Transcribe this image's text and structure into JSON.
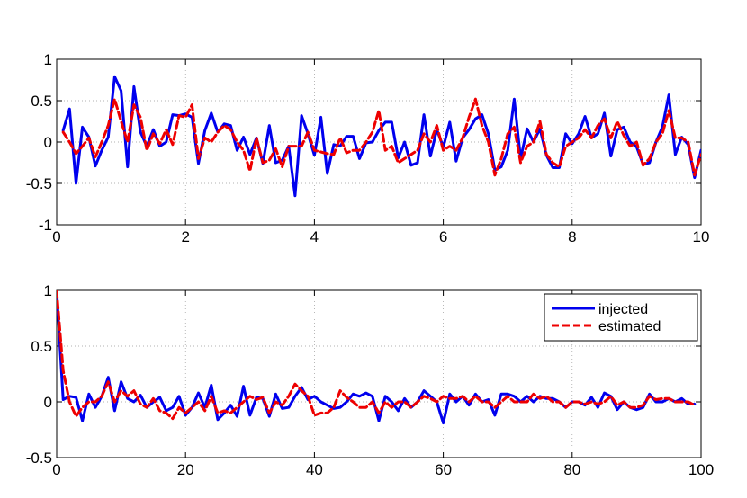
{
  "chart_data": [
    {
      "type": "line",
      "title": "",
      "xlabel": "",
      "ylabel": "",
      "xlim": [
        0,
        10
      ],
      "ylim": [
        -1,
        1
      ],
      "xticks": [
        0,
        2,
        4,
        6,
        8,
        10
      ],
      "yticks": [
        -1,
        -0.5,
        0,
        0.5,
        1
      ],
      "xtick_labels": [
        "0",
        "2",
        "4",
        "6",
        "8",
        "10"
      ],
      "ytick_labels": [
        "-1",
        "-0.5",
        "0",
        "0.5",
        "1"
      ],
      "grid": true,
      "legend": null,
      "x": [
        0.1,
        0.2,
        0.3,
        0.4,
        0.5,
        0.6,
        0.7,
        0.8,
        0.9,
        1.0,
        1.1,
        1.2,
        1.3,
        1.4,
        1.5,
        1.6,
        1.7,
        1.8,
        1.9,
        2.0,
        2.1,
        2.2,
        2.3,
        2.4,
        2.5,
        2.6,
        2.7,
        2.8,
        2.9,
        3.0,
        3.1,
        3.2,
        3.3,
        3.4,
        3.5,
        3.6,
        3.7,
        3.8,
        3.9,
        4.0,
        4.1,
        4.2,
        4.3,
        4.4,
        4.5,
        4.6,
        4.7,
        4.8,
        4.9,
        5.0,
        5.1,
        5.2,
        5.3,
        5.4,
        5.5,
        5.6,
        5.7,
        5.8,
        5.9,
        6.0,
        6.1,
        6.2,
        6.3,
        6.4,
        6.5,
        6.6,
        6.7,
        6.8,
        6.9,
        7.0,
        7.1,
        7.2,
        7.3,
        7.4,
        7.5,
        7.6,
        7.7,
        7.8,
        7.9,
        8.0,
        8.1,
        8.2,
        8.3,
        8.4,
        8.5,
        8.6,
        8.7,
        8.8,
        8.9,
        9.0,
        9.1,
        9.2,
        9.3,
        9.4,
        9.5,
        9.6,
        9.7,
        9.8,
        9.9,
        10.0
      ],
      "series": [
        {
          "color": "#0000ee",
          "dash": "solid",
          "values": [
            0.14,
            0.4,
            -0.5,
            0.18,
            0.06,
            -0.29,
            -0.1,
            0.06,
            0.79,
            0.62,
            -0.3,
            0.67,
            0.12,
            -0.05,
            0.15,
            -0.05,
            0.0,
            0.33,
            0.32,
            0.34,
            0.3,
            -0.26,
            0.14,
            0.35,
            0.12,
            0.22,
            0.2,
            -0.1,
            0.06,
            -0.15,
            0.05,
            -0.26,
            0.2,
            -0.25,
            -0.22,
            -0.05,
            -0.65,
            0.32,
            0.1,
            -0.16,
            0.3,
            -0.38,
            -0.03,
            -0.05,
            0.07,
            0.07,
            -0.2,
            -0.01,
            0.0,
            0.14,
            0.24,
            0.24,
            -0.19,
            0.0,
            -0.28,
            -0.25,
            0.33,
            -0.17,
            0.15,
            -0.06,
            0.24,
            -0.23,
            0.05,
            0.15,
            0.28,
            0.33,
            0.1,
            -0.34,
            -0.3,
            -0.1,
            0.52,
            -0.2,
            0.16,
            0.0,
            0.16,
            -0.16,
            -0.31,
            -0.31,
            0.1,
            -0.02,
            0.1,
            0.31,
            0.05,
            0.1,
            0.35,
            -0.17,
            0.15,
            0.18,
            0.0,
            -0.06,
            -0.27,
            -0.25,
            0.0,
            0.18,
            0.57,
            -0.15,
            0.06,
            -0.03,
            -0.43,
            -0.1
          ]
        },
        {
          "color": "#ee0000",
          "dash": "dashed",
          "values": [
            0.12,
            0.0,
            -0.14,
            -0.05,
            0.05,
            -0.18,
            0.0,
            0.2,
            0.52,
            0.25,
            0.0,
            0.45,
            0.3,
            -0.1,
            0.1,
            -0.02,
            0.15,
            -0.03,
            0.32,
            0.3,
            0.45,
            -0.2,
            0.05,
            0.0,
            0.12,
            0.2,
            0.15,
            0.0,
            -0.1,
            -0.35,
            0.05,
            -0.25,
            -0.22,
            -0.08,
            -0.3,
            -0.05,
            -0.05,
            -0.05,
            0.12,
            -0.1,
            -0.12,
            -0.14,
            -0.15,
            0.05,
            -0.13,
            -0.1,
            -0.1,
            0.0,
            0.12,
            0.38,
            -0.1,
            -0.05,
            -0.25,
            -0.2,
            -0.15,
            -0.1,
            0.1,
            0.0,
            0.2,
            -0.1,
            -0.05,
            -0.1,
            0.05,
            0.3,
            0.52,
            0.2,
            0.0,
            -0.4,
            -0.2,
            0.1,
            0.18,
            -0.25,
            -0.05,
            0.0,
            0.25,
            -0.15,
            -0.25,
            -0.3,
            -0.05,
            0.0,
            0.05,
            0.15,
            0.05,
            0.2,
            0.28,
            0.05,
            0.25,
            0.08,
            -0.05,
            0.0,
            -0.28,
            -0.2,
            0.0,
            0.1,
            0.38,
            0.05,
            0.05,
            0.0,
            -0.4,
            -0.15
          ]
        }
      ]
    },
    {
      "type": "line",
      "title": "",
      "xlabel": "",
      "ylabel": "",
      "xlim": [
        0,
        100
      ],
      "ylim": [
        -0.5,
        1
      ],
      "xticks": [
        0,
        20,
        40,
        60,
        80,
        100
      ],
      "yticks": [
        -0.5,
        0,
        0.5,
        1
      ],
      "xtick_labels": [
        "0",
        "20",
        "40",
        "60",
        "80",
        "100"
      ],
      "ytick_labels": [
        "-0.5",
        "0",
        "0.5",
        "1"
      ],
      "grid": true,
      "legend": "top-right",
      "x": [
        0,
        1,
        2,
        3,
        4,
        5,
        6,
        7,
        8,
        9,
        10,
        11,
        12,
        13,
        14,
        15,
        16,
        17,
        18,
        19,
        20,
        21,
        22,
        23,
        24,
        25,
        26,
        27,
        28,
        29,
        30,
        31,
        32,
        33,
        34,
        35,
        36,
        37,
        38,
        39,
        40,
        41,
        42,
        43,
        44,
        45,
        46,
        47,
        48,
        49,
        50,
        51,
        52,
        53,
        54,
        55,
        56,
        57,
        58,
        59,
        60,
        61,
        62,
        63,
        64,
        65,
        66,
        67,
        68,
        69,
        70,
        71,
        72,
        73,
        74,
        75,
        76,
        77,
        78,
        79,
        80,
        81,
        82,
        83,
        84,
        85,
        86,
        87,
        88,
        89,
        90,
        91,
        92,
        93,
        94,
        95,
        96,
        97,
        98,
        99
      ],
      "series": [
        {
          "name": "injected",
          "color": "#0000ee",
          "dash": "solid",
          "values": [
            1.0,
            0.02,
            0.05,
            0.04,
            -0.17,
            0.07,
            -0.05,
            0.05,
            0.22,
            -0.08,
            0.18,
            0.03,
            0.0,
            0.06,
            -0.05,
            0.0,
            0.04,
            -0.08,
            -0.05,
            0.05,
            -0.12,
            -0.05,
            0.08,
            -0.05,
            0.15,
            -0.16,
            -0.1,
            -0.03,
            -0.13,
            0.14,
            -0.12,
            0.04,
            0.03,
            -0.13,
            0.07,
            -0.06,
            -0.05,
            0.05,
            0.13,
            0.02,
            0.05,
            0.0,
            -0.03,
            -0.06,
            -0.05,
            0.0,
            0.07,
            0.05,
            0.08,
            0.05,
            -0.17,
            0.05,
            0.0,
            -0.08,
            0.03,
            -0.05,
            0.0,
            0.1,
            0.05,
            0.0,
            -0.19,
            0.07,
            0.0,
            0.05,
            -0.03,
            0.07,
            0.0,
            0.02,
            -0.12,
            0.07,
            0.07,
            0.05,
            0.0,
            0.05,
            0.0,
            0.05,
            0.03,
            0.03,
            0.0,
            -0.05,
            0.0,
            0.0,
            -0.03,
            0.04,
            -0.05,
            0.08,
            0.05,
            -0.07,
            0.0,
            -0.05,
            -0.07,
            -0.05,
            0.07,
            0.0,
            0.0,
            0.03,
            0.0,
            0.03,
            -0.02,
            -0.02
          ]
        },
        {
          "name": "estimated",
          "color": "#ee0000",
          "dash": "dashed",
          "values": [
            1.0,
            0.28,
            0.0,
            -0.13,
            -0.05,
            0.0,
            0.0,
            0.05,
            0.18,
            0.0,
            0.1,
            0.05,
            0.1,
            -0.02,
            -0.05,
            0.03,
            -0.08,
            -0.1,
            -0.15,
            -0.05,
            -0.1,
            -0.05,
            0.0,
            -0.08,
            0.05,
            -0.1,
            -0.08,
            -0.1,
            -0.05,
            0.0,
            0.05,
            0.02,
            0.04,
            -0.1,
            0.0,
            -0.03,
            0.05,
            0.16,
            0.1,
            0.05,
            -0.12,
            -0.1,
            -0.1,
            -0.05,
            0.1,
            0.04,
            0.0,
            -0.05,
            -0.05,
            0.0,
            -0.1,
            0.0,
            -0.05,
            0.0,
            0.0,
            -0.05,
            0.0,
            0.05,
            0.03,
            0.0,
            0.05,
            0.03,
            0.03,
            0.05,
            0.0,
            0.05,
            0.0,
            0.0,
            -0.05,
            0.0,
            0.05,
            0.0,
            0.0,
            0.0,
            0.07,
            0.03,
            0.05,
            0.0,
            0.0,
            -0.05,
            0.0,
            0.0,
            -0.02,
            0.0,
            -0.02,
            0.0,
            0.05,
            -0.03,
            0.0,
            -0.05,
            -0.05,
            -0.03,
            0.05,
            0.02,
            0.03,
            0.03,
            0.0,
            0.0,
            0.0,
            -0.03
          ]
        }
      ]
    }
  ]
}
